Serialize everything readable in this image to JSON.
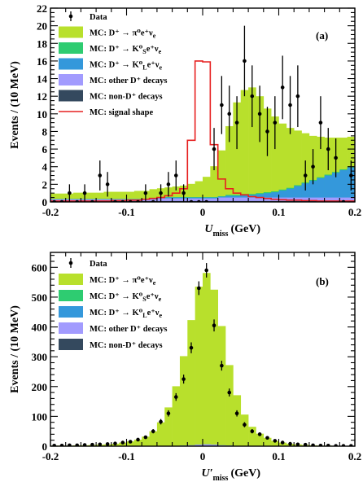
{
  "chart_data": [
    {
      "type": "bar",
      "panel_label": "(a)",
      "xlabel": "U",
      "xlabel_sub": "miss",
      "xlabel_unit": "(GeV)",
      "ylabel": "Events / (10 MeV)",
      "xlim": [
        -0.2,
        0.2
      ],
      "ylim": [
        0,
        22
      ],
      "x_ticks": [
        -0.2,
        -0.1,
        0,
        0.1,
        0.2
      ],
      "x_tick_labels": [
        "-0.2",
        "-0.1",
        "0",
        "0.1",
        "0.2"
      ],
      "y_ticks": [
        0,
        2,
        4,
        6,
        8,
        10,
        12,
        14,
        16,
        18,
        20,
        22
      ],
      "y_tick_labels": [
        "0",
        "2",
        "4",
        "6",
        "8",
        "10",
        "12",
        "14",
        "16",
        "18",
        "20",
        "22"
      ],
      "legend_position": "top-left",
      "bin_edges": [
        -0.2,
        -0.19,
        -0.18,
        -0.17,
        -0.16,
        -0.15,
        -0.14,
        -0.13,
        -0.12,
        -0.11,
        -0.1,
        -0.09,
        -0.08,
        -0.07,
        -0.06,
        -0.05,
        -0.04,
        -0.03,
        -0.02,
        -0.01,
        0.0,
        0.01,
        0.02,
        0.03,
        0.04,
        0.05,
        0.06,
        0.07,
        0.08,
        0.09,
        0.1,
        0.11,
        0.12,
        0.13,
        0.14,
        0.15,
        0.16,
        0.17,
        0.18,
        0.19,
        0.2
      ],
      "stack_series": [
        {
          "name": "MC: non-D⁺ decays",
          "legend": "MC: non-D",
          "color": "#34495e",
          "values": [
            0.1,
            0.1,
            0.1,
            0.1,
            0.1,
            0.1,
            0.1,
            0.1,
            0.1,
            0.1,
            0.1,
            0.1,
            0.1,
            0.1,
            0.1,
            0.1,
            0.1,
            0.1,
            0.1,
            0.1,
            0.1,
            0.1,
            0.1,
            0.1,
            0.1,
            0.1,
            0.1,
            0.1,
            0.1,
            0.1,
            0.1,
            0.1,
            0.1,
            0.1,
            0.1,
            0.1,
            0.1,
            0.1,
            0.1,
            0.1
          ]
        },
        {
          "name": "MC: other D⁺ decays",
          "legend": "MC: other D",
          "color": "#a29bfe",
          "values": [
            0.2,
            0.2,
            0.2,
            0.2,
            0.2,
            0.2,
            0.2,
            0.2,
            0.2,
            0.2,
            0.2,
            0.2,
            0.2,
            0.2,
            0.3,
            0.3,
            0.3,
            0.3,
            0.3,
            0.3,
            0.3,
            0.3,
            0.4,
            0.4,
            0.4,
            0.4,
            0.4,
            0.4,
            0.4,
            0.4,
            0.4,
            0.4,
            0.4,
            0.4,
            0.4,
            0.4,
            0.4,
            0.4,
            0.4,
            0.4
          ]
        },
        {
          "name": "MC: D⁺ → K⁰_L e⁺ ν_e",
          "legend": "MC: D",
          "color": "#3498db",
          "values": [
            0,
            0,
            0,
            0,
            0,
            0,
            0,
            0,
            0,
            0,
            0,
            0,
            0,
            0.1,
            0.1,
            0.1,
            0.1,
            0.1,
            0.1,
            0.1,
            0.1,
            0.1,
            0.1,
            0.2,
            0.2,
            0.3,
            0.3,
            0.4,
            0.5,
            0.6,
            0.8,
            1.0,
            1.3,
            1.6,
            1.9,
            2.2,
            2.5,
            2.8,
            3.1,
            3.4
          ]
        },
        {
          "name": "MC: D⁺ → K⁰_S e⁺ ν_e",
          "legend": "MC: D",
          "color": "#2ecc71",
          "values": [
            0.05,
            0.05,
            0.05,
            0.05,
            0.05,
            0.05,
            0.05,
            0.05,
            0.05,
            0.05,
            0.05,
            0.05,
            0.05,
            0.05,
            0.05,
            0.05,
            0.05,
            0.05,
            0.05,
            0.05,
            0.05,
            0.05,
            0.05,
            0.1,
            0.1,
            0.1,
            0.1,
            0.1,
            0.1,
            0.1,
            0.1,
            0.1,
            0.1,
            0.1,
            0.1,
            0.1,
            0.1,
            0.1,
            0.1,
            0.1
          ]
        },
        {
          "name": "MC: D⁺ → π⁰ e⁺ ν_e",
          "legend": "MC: D",
          "color": "#b8e02c",
          "values": [
            0.6,
            0.6,
            0.6,
            0.7,
            0.7,
            0.7,
            0.7,
            0.8,
            0.8,
            0.8,
            0.8,
            0.9,
            0.9,
            1.0,
            1.0,
            1.1,
            1.2,
            1.3,
            1.5,
            1.8,
            2.3,
            3.5,
            5.2,
            7.8,
            10.5,
            11.8,
            12.1,
            11.0,
            9.5,
            8.5,
            7.5,
            6.8,
            6.2,
            5.6,
            5.0,
            4.6,
            4.2,
            3.9,
            3.6,
            3.4
          ]
        }
      ],
      "signal_shape": {
        "name": "MC: signal shape",
        "color": "#e62020",
        "values": [
          0.1,
          0.1,
          0.1,
          0.1,
          0.1,
          0.1,
          0.1,
          0.1,
          0.15,
          0.15,
          0.2,
          0.2,
          0.3,
          0.4,
          0.5,
          0.7,
          1.0,
          1.5,
          7.0,
          16.0,
          15.9,
          6.5,
          2.6,
          1.5,
          1.0,
          0.8,
          0.6,
          0.5,
          0.4,
          0.3,
          0.25,
          0.2,
          0.2,
          0.15,
          0.15,
          0.1,
          0.1,
          0.1,
          0.1,
          0.1
        ]
      },
      "data_points": {
        "name": "Data",
        "x": [
          -0.195,
          -0.185,
          -0.175,
          -0.165,
          -0.155,
          -0.145,
          -0.135,
          -0.125,
          -0.115,
          -0.105,
          -0.095,
          -0.085,
          -0.075,
          -0.065,
          -0.055,
          -0.045,
          -0.035,
          -0.025,
          -0.015,
          -0.005,
          0.005,
          0.015,
          0.025,
          0.035,
          0.045,
          0.055,
          0.065,
          0.075,
          0.085,
          0.095,
          0.105,
          0.115,
          0.125,
          0.135,
          0.145,
          0.155,
          0.165,
          0.175,
          0.185,
          0.195
        ],
        "y": [
          0,
          0,
          1,
          0,
          1,
          0,
          3,
          2,
          0,
          0,
          0,
          0,
          1,
          0,
          1,
          2,
          3,
          1,
          0,
          0,
          0,
          6,
          11,
          10,
          9,
          16,
          12,
          10,
          8,
          9,
          13,
          11,
          12,
          3,
          4,
          9,
          6,
          5,
          0,
          3
        ],
        "err": [
          0,
          0,
          1.0,
          0,
          1.0,
          0,
          1.7,
          1.4,
          0,
          0,
          0,
          0,
          1.0,
          0,
          1.0,
          1.4,
          1.7,
          1.0,
          0,
          0,
          0,
          2.4,
          3.3,
          3.2,
          3.0,
          4.0,
          3.5,
          3.2,
          2.8,
          3.0,
          3.6,
          3.3,
          3.5,
          1.7,
          2.0,
          3.0,
          2.4,
          2.2,
          0,
          1.7
        ]
      },
      "legend": [
        {
          "kind": "data",
          "label": "Data"
        },
        {
          "kind": "box",
          "color": "#b8e02c",
          "label": "MC: D⁺ → π⁰e⁺ν",
          "suffix": "e"
        },
        {
          "kind": "box",
          "color": "#2ecc71",
          "label": "MC: D⁺ → K⁰",
          "sub": "S",
          "rest": "e⁺ν",
          "suffix": "e"
        },
        {
          "kind": "box",
          "color": "#3498db",
          "label": "MC: D⁺ → K⁰",
          "sub": "L",
          "rest": "e⁺ν",
          "suffix": "e"
        },
        {
          "kind": "box",
          "color": "#a29bfe",
          "label": "MC: other D⁺ decays"
        },
        {
          "kind": "box",
          "color": "#34495e",
          "label": "MC: non-D⁺ decays"
        },
        {
          "kind": "line",
          "color": "#e62020",
          "label": "MC: signal shape"
        }
      ]
    },
    {
      "type": "bar",
      "panel_label": "(b)",
      "xlabel": "U′",
      "xlabel_sub": "miss",
      "xlabel_unit": "(GeV)",
      "ylabel": "Events / (10 MeV)",
      "xlim": [
        -0.2,
        0.2
      ],
      "ylim": [
        0,
        650
      ],
      "x_ticks": [
        -0.2,
        -0.1,
        0,
        0.1,
        0.2
      ],
      "x_tick_labels": [
        "-0.2",
        "-0.1",
        "0",
        "0.1",
        "0.2"
      ],
      "y_ticks": [
        0,
        100,
        200,
        300,
        400,
        500,
        600
      ],
      "y_tick_labels": [
        "0",
        "100",
        "200",
        "300",
        "400",
        "500",
        "600"
      ],
      "legend_position": "top-left",
      "bin_edges": [
        -0.2,
        -0.19,
        -0.18,
        -0.17,
        -0.16,
        -0.15,
        -0.14,
        -0.13,
        -0.12,
        -0.11,
        -0.1,
        -0.09,
        -0.08,
        -0.07,
        -0.06,
        -0.05,
        -0.04,
        -0.03,
        -0.02,
        -0.01,
        0.0,
        0.01,
        0.02,
        0.03,
        0.04,
        0.05,
        0.06,
        0.07,
        0.08,
        0.09,
        0.1,
        0.11,
        0.12,
        0.13,
        0.14,
        0.15,
        0.16,
        0.17,
        0.18,
        0.19,
        0.2
      ],
      "stack_series": [
        {
          "name": "MC: non-D⁺ decays",
          "color": "#34495e",
          "values": [
            0,
            0,
            0,
            0,
            0,
            0,
            0,
            0,
            0,
            0,
            0,
            0,
            0,
            0,
            0,
            0,
            0,
            0,
            0,
            0,
            0,
            0,
            0,
            0,
            0,
            0,
            0,
            0,
            0,
            0,
            0,
            0,
            0,
            0,
            0,
            0,
            0,
            0,
            0,
            0
          ]
        },
        {
          "name": "MC: other D⁺ decays",
          "color": "#a29bfe",
          "values": [
            0,
            0,
            0,
            0,
            0,
            0,
            0,
            0,
            0,
            0,
            0,
            0,
            0,
            0,
            0,
            0,
            1,
            2,
            3,
            5,
            6,
            5,
            3,
            2,
            1,
            1,
            0,
            0,
            0,
            0,
            0,
            0,
            0,
            0,
            0,
            0,
            0,
            0,
            0,
            0
          ]
        },
        {
          "name": "MC: D⁺ → K⁰_L e⁺ ν_e",
          "color": "#3498db",
          "values": [
            0,
            0,
            0,
            0,
            0,
            0,
            0,
            0,
            0,
            0,
            0,
            0,
            0,
            0,
            0,
            0,
            0,
            0,
            0,
            0,
            0,
            0,
            0,
            0,
            0,
            0,
            0,
            0,
            0,
            0,
            0,
            0,
            0,
            0,
            0,
            0,
            0,
            0,
            0,
            0
          ]
        },
        {
          "name": "MC: D⁺ → K⁰_S e⁺ ν_e",
          "color": "#2ecc71",
          "values": [
            0,
            0,
            0,
            0,
            0,
            0,
            0,
            0,
            0,
            0,
            0,
            0,
            0,
            0,
            0,
            0,
            0,
            0,
            0,
            0,
            0,
            0,
            0,
            0,
            0,
            0,
            0,
            0,
            0,
            0,
            0,
            0,
            0,
            0,
            0,
            0,
            0,
            0,
            0,
            0
          ]
        },
        {
          "name": "MC: D⁺ → π⁰ e⁺ ν_e",
          "color": "#b8e02c",
          "values": [
            2,
            2,
            2,
            3,
            3,
            4,
            5,
            6,
            8,
            12,
            16,
            22,
            32,
            50,
            80,
            130,
            200,
            300,
            420,
            530,
            575,
            520,
            400,
            270,
            170,
            105,
            65,
            42,
            28,
            18,
            12,
            8,
            6,
            4,
            3,
            2,
            2,
            1,
            1,
            1
          ]
        }
      ],
      "data_points": {
        "name": "Data",
        "x": [
          -0.195,
          -0.185,
          -0.175,
          -0.165,
          -0.155,
          -0.145,
          -0.135,
          -0.125,
          -0.115,
          -0.105,
          -0.095,
          -0.085,
          -0.075,
          -0.065,
          -0.055,
          -0.045,
          -0.035,
          -0.025,
          -0.015,
          -0.005,
          0.005,
          0.015,
          0.025,
          0.035,
          0.045,
          0.055,
          0.065,
          0.075,
          0.085,
          0.095,
          0.105,
          0.115,
          0.125,
          0.135,
          0.145,
          0.155,
          0.165,
          0.175,
          0.185,
          0.195
        ],
        "y": [
          2,
          2,
          3,
          3,
          4,
          5,
          6,
          7,
          9,
          12,
          15,
          22,
          30,
          50,
          82,
          110,
          165,
          225,
          330,
          530,
          590,
          405,
          270,
          180,
          110,
          72,
          50,
          40,
          28,
          18,
          12,
          8,
          6,
          5,
          3,
          2,
          2,
          1,
          1,
          1
        ],
        "err": [
          1.4,
          1.4,
          1.7,
          1.7,
          2,
          2.2,
          2.4,
          2.6,
          3,
          3.5,
          3.9,
          4.7,
          5.5,
          7.1,
          9.1,
          10.5,
          12.8,
          15,
          18.2,
          23,
          24.3,
          20.1,
          16.4,
          13.4,
          10.5,
          8.5,
          7.1,
          6.3,
          5.3,
          4.2,
          3.5,
          2.8,
          2.4,
          2.2,
          1.7,
          1.4,
          1.4,
          1,
          1,
          1
        ]
      },
      "legend": [
        {
          "kind": "data",
          "label": "Data"
        },
        {
          "kind": "box",
          "color": "#b8e02c",
          "label": "MC: D⁺ → π⁰e⁺ν",
          "suffix": "e"
        },
        {
          "kind": "box",
          "color": "#2ecc71",
          "label": "MC: D⁺ → K⁰",
          "sub": "S",
          "rest": "e⁺ν",
          "suffix": "e"
        },
        {
          "kind": "box",
          "color": "#3498db",
          "label": "MC: D⁺ → K⁰",
          "sub": "L",
          "rest": "e⁺ν",
          "suffix": "e"
        },
        {
          "kind": "box",
          "color": "#a29bfe",
          "label": "MC: other D⁺ decays"
        },
        {
          "kind": "box",
          "color": "#34495e",
          "label": "MC: non-D⁺ decays"
        }
      ]
    }
  ]
}
